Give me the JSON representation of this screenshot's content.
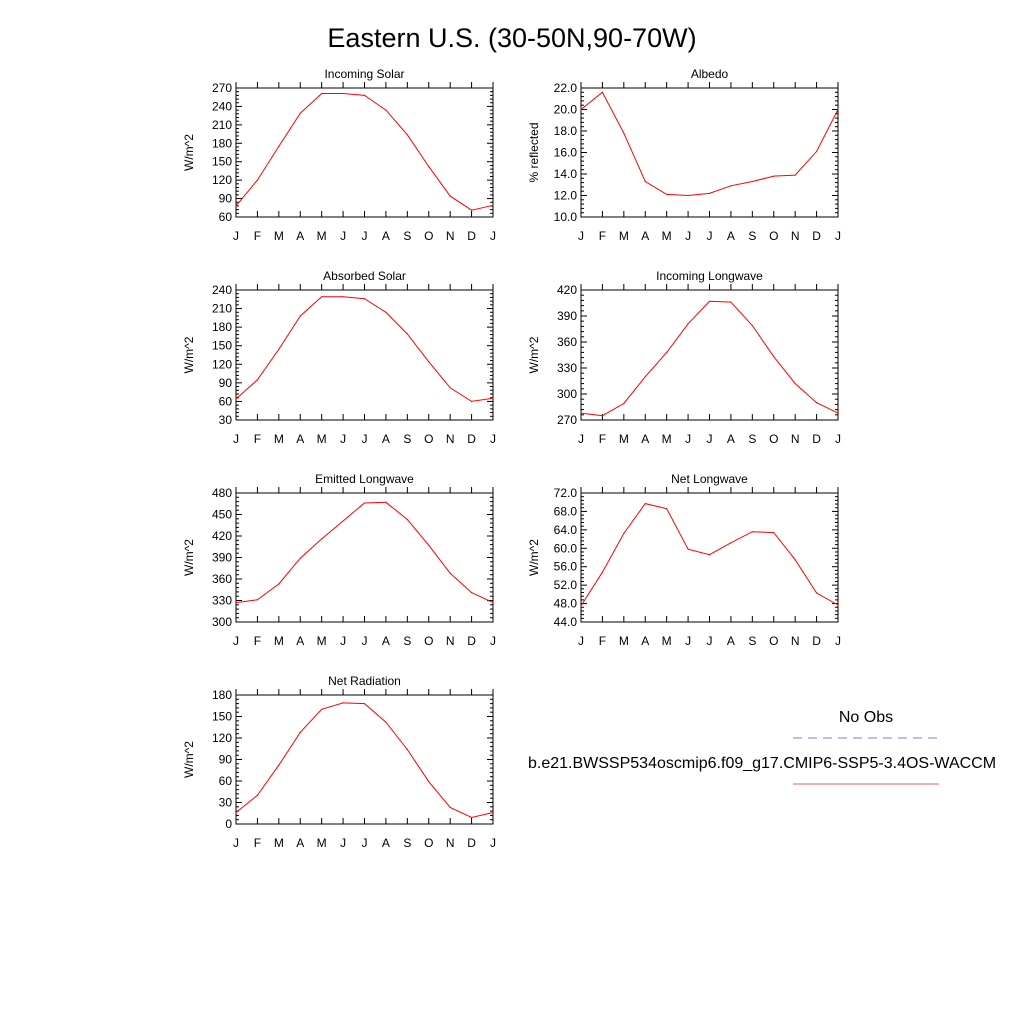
{
  "figure": {
    "title": "Eastern U.S. (30-50N,90-70W)"
  },
  "legend": {
    "entries": [
      {
        "label": "No Obs",
        "color": "#7b7bdc",
        "dash": true
      },
      {
        "label": "b.e21.BWSSP534oscmip6.f09_g17.CMIP6-SSP5-3.4OS-WACCM",
        "color": "#e06060",
        "dash": false
      }
    ]
  },
  "colors": {
    "series": "#ff0000",
    "axis": "#000000"
  },
  "chart_data": [
    {
      "type": "line",
      "title": "Incoming Solar",
      "ylabel": "W/m^2",
      "categories": [
        "J",
        "F",
        "M",
        "A",
        "M",
        "J",
        "J",
        "A",
        "S",
        "O",
        "N",
        "D",
        "J"
      ],
      "yticks": [
        "60",
        "90",
        "120",
        "150",
        "180",
        "210",
        "240",
        "270"
      ],
      "ylim": [
        60,
        270
      ],
      "values": [
        78,
        120,
        175,
        229,
        261,
        261,
        258,
        234,
        194,
        142,
        94,
        71,
        79
      ]
    },
    {
      "type": "line",
      "title": "Albedo",
      "ylabel": "% reflected",
      "categories": [
        "J",
        "F",
        "M",
        "A",
        "M",
        "J",
        "J",
        "A",
        "S",
        "O",
        "N",
        "D",
        "J"
      ],
      "yticks": [
        "10.0",
        "12.0",
        "14.0",
        "16.0",
        "18.0",
        "20.0",
        "22.0"
      ],
      "ylim": [
        10,
        22
      ],
      "values": [
        20.0,
        21.6,
        17.8,
        13.3,
        12.1,
        12.0,
        12.2,
        12.9,
        13.3,
        13.8,
        13.9,
        16.1,
        20.0
      ]
    },
    {
      "type": "line",
      "title": "Absorbed Solar",
      "ylabel": "W/m^2",
      "categories": [
        "J",
        "F",
        "M",
        "A",
        "M",
        "J",
        "J",
        "A",
        "S",
        "O",
        "N",
        "D",
        "J"
      ],
      "yticks": [
        "30",
        "60",
        "90",
        "120",
        "150",
        "180",
        "210",
        "240"
      ],
      "ylim": [
        30,
        240
      ],
      "values": [
        64,
        95,
        144,
        198,
        229,
        229,
        226,
        204,
        169,
        124,
        82,
        60,
        65
      ]
    },
    {
      "type": "line",
      "title": "Incoming Longwave",
      "ylabel": "W/m^2",
      "categories": [
        "J",
        "F",
        "M",
        "A",
        "M",
        "J",
        "J",
        "A",
        "S",
        "O",
        "N",
        "D",
        "J"
      ],
      "yticks": [
        "270",
        "300",
        "330",
        "360",
        "390",
        "420"
      ],
      "ylim": [
        270,
        420
      ],
      "values": [
        278,
        275,
        289,
        320,
        348,
        381,
        407,
        406,
        379,
        343,
        312,
        290,
        278
      ]
    },
    {
      "type": "line",
      "title": "Emitted Longwave",
      "ylabel": "W/m^2",
      "categories": [
        "J",
        "F",
        "M",
        "A",
        "M",
        "J",
        "J",
        "A",
        "S",
        "O",
        "N",
        "D",
        "J"
      ],
      "yticks": [
        "300",
        "330",
        "360",
        "390",
        "420",
        "450",
        "480"
      ],
      "ylim": [
        300,
        480
      ],
      "values": [
        327,
        331,
        353,
        389,
        416,
        441,
        466,
        467,
        443,
        407,
        368,
        341,
        327
      ]
    },
    {
      "type": "line",
      "title": "Net Longwave",
      "ylabel": "W/m^2",
      "categories": [
        "J",
        "F",
        "M",
        "A",
        "M",
        "J",
        "J",
        "A",
        "S",
        "O",
        "N",
        "D",
        "J"
      ],
      "yticks": [
        "44.0",
        "48.0",
        "52.0",
        "56.0",
        "60.0",
        "64.0",
        "68.0",
        "72.0"
      ],
      "ylim": [
        44,
        72
      ],
      "values": [
        47.5,
        54.8,
        63.2,
        69.7,
        68.6,
        59.8,
        58.6,
        61.2,
        63.6,
        63.4,
        57.5,
        50.3,
        47.7
      ]
    },
    {
      "type": "line",
      "title": "Net Radiation",
      "ylabel": "W/m^2",
      "categories": [
        "J",
        "F",
        "M",
        "A",
        "M",
        "J",
        "J",
        "A",
        "S",
        "O",
        "N",
        "D",
        "J"
      ],
      "yticks": [
        "0",
        "30",
        "60",
        "90",
        "120",
        "150",
        "180"
      ],
      "ylim": [
        0,
        180
      ],
      "values": [
        16,
        40,
        82,
        128,
        160,
        169,
        168,
        142,
        104,
        59,
        23,
        9,
        16
      ]
    }
  ]
}
